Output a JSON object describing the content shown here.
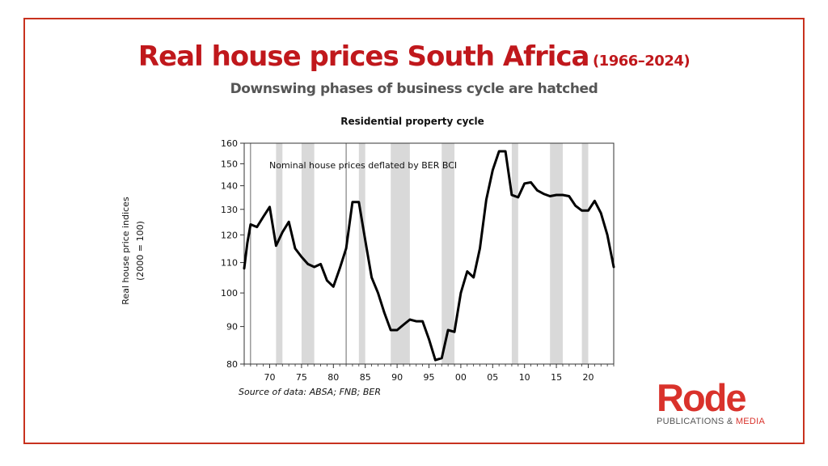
{
  "header": {
    "title": "Real house prices South Africa",
    "title_years": "(1966–2024)",
    "subtitle": "Downswing phases of business cycle are hatched"
  },
  "source": "Source of data: ABSA; FNB; BER",
  "logo": {
    "word": "Rode",
    "sub_main": "PUBLICATIONS & ",
    "sub_accent": "MEDIA"
  },
  "colors": {
    "frame": "#c8321f",
    "title": "#c0181c",
    "line": "#000000",
    "shading": "#d9d9d9",
    "logo": "#d9322b"
  },
  "chart_data": {
    "type": "line",
    "title": "Residential property cycle",
    "ylabel_line1": "Real house price indices",
    "ylabel_line2": "(2000 = 100)",
    "annotation": "Nominal house prices deflated by BER BCI",
    "yscale": "log",
    "ylim": [
      80,
      160
    ],
    "xlim": [
      1966,
      2024
    ],
    "yticks": [
      80,
      90,
      100,
      110,
      120,
      130,
      140,
      150,
      160
    ],
    "xticks": [
      1970,
      1975,
      1980,
      1985,
      1990,
      1995,
      2000,
      2005,
      2010,
      2015,
      2020
    ],
    "xtick_labels": [
      "70",
      "75",
      "80",
      "85",
      "90",
      "95",
      "00",
      "05",
      "10",
      "15",
      "20"
    ],
    "vertical_lines": [
      1967,
      1982
    ],
    "downswings": [
      [
        1971,
        1972
      ],
      [
        1975,
        1977
      ],
      [
        1984,
        1985
      ],
      [
        1989,
        1992
      ],
      [
        1997,
        1999
      ],
      [
        2008,
        2009
      ],
      [
        2014,
        2016
      ],
      [
        2019,
        2020
      ]
    ],
    "series": [
      {
        "name": "",
        "x": [
          1966,
          1966.5,
          1967,
          1968,
          1969,
          1970,
          1971,
          1972,
          1973,
          1974,
          1975,
          1976,
          1977,
          1978,
          1979,
          1980,
          1981,
          1982,
          1983,
          1984,
          1985,
          1986,
          1987,
          1988,
          1989,
          1990,
          1991,
          1992,
          1993,
          1994,
          1995,
          1996,
          1997,
          1998,
          1999,
          2000,
          2001,
          2002,
          2003,
          2004,
          2005,
          2006,
          2007,
          2008,
          2009,
          2010,
          2011,
          2012,
          2013,
          2014,
          2015,
          2016,
          2017,
          2018,
          2019,
          2020,
          2021,
          2022,
          2023,
          2024
        ],
        "values": [
          108,
          117,
          124,
          123,
          127,
          131,
          116,
          121,
          125,
          115,
          112,
          109.5,
          108.5,
          109.5,
          104,
          102,
          108,
          115,
          133,
          133,
          118,
          105,
          100,
          94,
          89,
          89,
          90.5,
          92,
          91.5,
          91.5,
          86.5,
          81,
          81.5,
          89,
          88.5,
          100,
          107,
          105,
          115,
          134,
          147,
          156,
          156,
          136,
          135,
          141,
          141.5,
          138,
          136.5,
          135.5,
          136,
          136,
          135.5,
          131.5,
          129.5,
          129.5,
          133.5,
          128.5,
          120,
          108.5
        ]
      }
    ]
  }
}
